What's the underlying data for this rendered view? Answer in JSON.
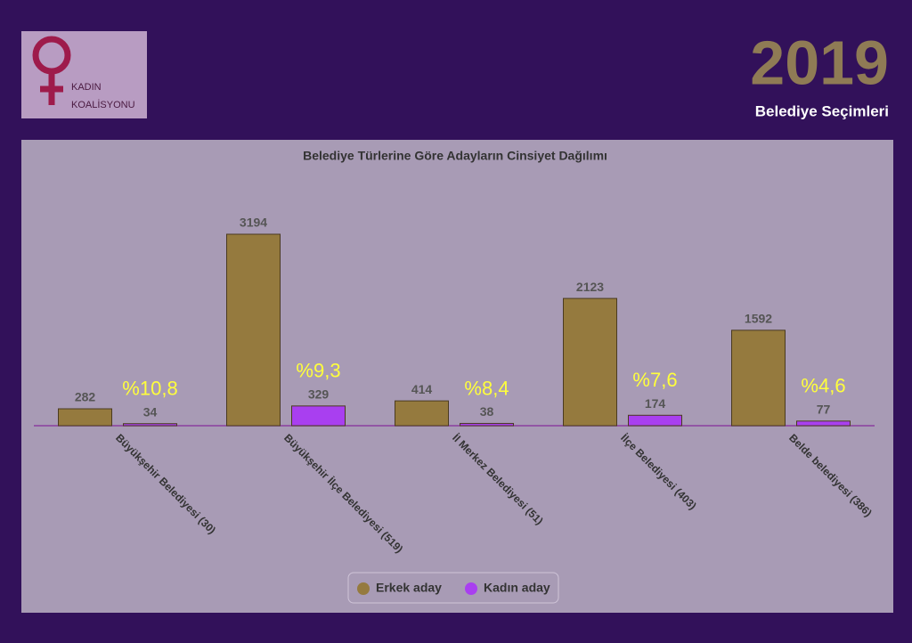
{
  "header": {
    "year": "2019",
    "subtitle": "Belediye Seçimleri",
    "logo_line1": "KADIN",
    "logo_line2": "KOALİSYONU"
  },
  "chart_data": {
    "type": "bar",
    "title": "Belediye Türlerine Göre Adayların Cinsiyet Dağılımı",
    "categories": [
      "Büyükşehir Belediyesi (30)",
      "Büyükşehir İlçe Belediyesi (519)",
      "İl Merkez Belediyesi (51)",
      "İlçe Belediyesi (403)",
      "Belde belediyesi (386)"
    ],
    "series": [
      {
        "name": "Erkek aday",
        "color": "#957a3e",
        "values": [
          282,
          3194,
          414,
          2123,
          1592
        ]
      },
      {
        "name": "Kadın aday",
        "color": "#a93ff0",
        "values": [
          34,
          329,
          38,
          174,
          77
        ]
      }
    ],
    "annotations": [
      "%10,8",
      "%9,3",
      "%8,4",
      "%7,6",
      "%4,6"
    ],
    "legend": "bottom"
  }
}
